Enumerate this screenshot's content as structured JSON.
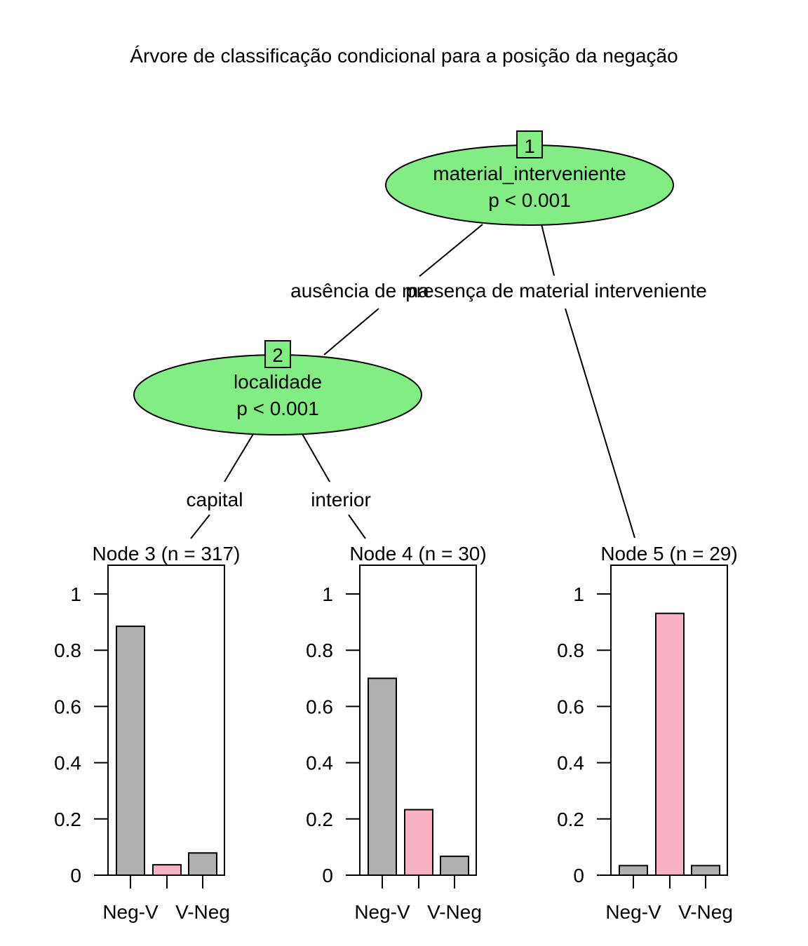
{
  "title": "Árvore de classificação condicional para a posição da negação",
  "colors": {
    "node_fill": "#82ED82",
    "bar_gray": "#B0B0B0",
    "bar_pink": "#F9B1C3"
  },
  "inner_nodes": [
    {
      "id": "1",
      "variable": "material_interveniente",
      "pvalue": "p < 0.001"
    },
    {
      "id": "2",
      "variable": "localidade",
      "pvalue": "p < 0.001"
    }
  ],
  "edge_labels": {
    "n1_left": "ausência de ma",
    "n1_right": "presença de material interveniente",
    "n2_left": "capital",
    "n2_right": "interior"
  },
  "chart_data": [
    {
      "type": "bar",
      "title": "Node 3 (n = 317)",
      "categories": [
        "Neg-V",
        "",
        "V-Neg"
      ],
      "values": [
        0.885,
        0.037,
        0.079
      ],
      "ylim": [
        0,
        1
      ],
      "yticks": [
        "0",
        "0.2",
        "0.4",
        "0.6",
        "0.8",
        "1"
      ],
      "colors": [
        "#B0B0B0",
        "#F9B1C3",
        "#B0B0B0"
      ]
    },
    {
      "type": "bar",
      "title": "Node 4 (n = 30)",
      "categories": [
        "Neg-V",
        "",
        "V-Neg"
      ],
      "values": [
        0.7,
        0.233,
        0.067
      ],
      "ylim": [
        0,
        1
      ],
      "yticks": [
        "0",
        "0.2",
        "0.4",
        "0.6",
        "0.8",
        "1"
      ],
      "colors": [
        "#B0B0B0",
        "#F9B1C3",
        "#B0B0B0"
      ]
    },
    {
      "type": "bar",
      "title": "Node 5 (n = 29)",
      "categories": [
        "Neg-V",
        "",
        "V-Neg"
      ],
      "values": [
        0.034,
        0.931,
        0.034
      ],
      "ylim": [
        0,
        1
      ],
      "yticks": [
        "0",
        "0.2",
        "0.4",
        "0.6",
        "0.8",
        "1"
      ],
      "colors": [
        "#B0B0B0",
        "#F9B1C3",
        "#B0B0B0"
      ]
    }
  ]
}
